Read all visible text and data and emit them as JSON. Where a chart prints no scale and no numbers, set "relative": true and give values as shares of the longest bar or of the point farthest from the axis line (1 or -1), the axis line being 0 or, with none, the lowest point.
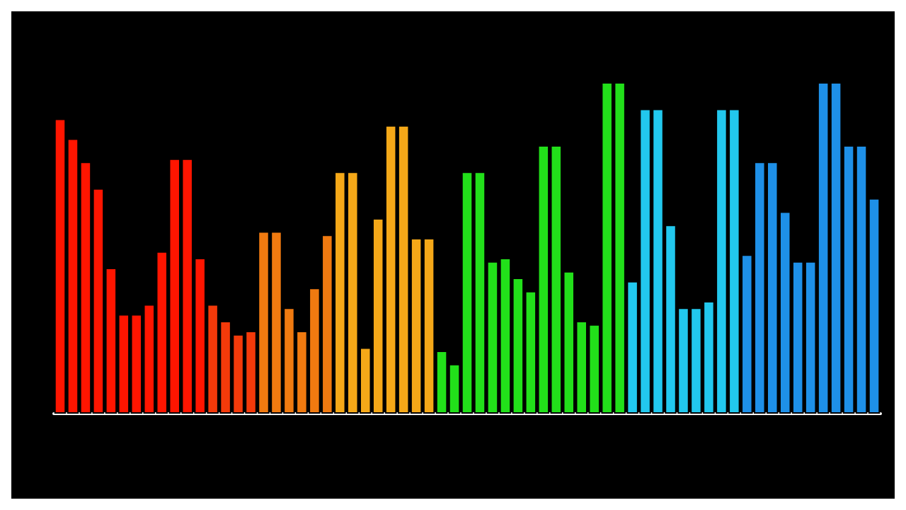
{
  "chart_data": {
    "type": "bar",
    "relative": true,
    "categories": [
      null,
      null,
      null,
      null,
      null,
      null,
      null,
      null,
      null,
      null,
      null,
      null,
      null,
      null,
      null,
      null,
      null,
      null,
      null,
      null,
      null,
      null,
      null,
      null,
      null,
      null,
      null,
      null,
      null,
      null,
      null,
      null,
      null,
      null,
      null,
      null,
      null,
      null,
      null,
      null,
      null,
      null,
      null,
      null,
      null,
      null,
      null,
      null,
      null,
      null,
      null,
      null,
      null,
      null,
      null,
      null,
      null,
      null,
      null,
      null,
      null,
      null,
      null,
      null,
      null
    ],
    "values": [
      0.89,
      0.83,
      0.76,
      0.68,
      0.44,
      0.3,
      0.3,
      0.33,
      0.49,
      0.77,
      0.77,
      0.47,
      0.33,
      0.28,
      0.24,
      0.25,
      0.55,
      0.55,
      0.32,
      0.25,
      0.38,
      0.54,
      0.73,
      0.73,
      0.2,
      0.59,
      0.87,
      0.87,
      0.53,
      0.53,
      0.19,
      0.15,
      0.73,
      0.73,
      0.46,
      0.47,
      0.41,
      0.37,
      0.81,
      0.81,
      0.43,
      0.28,
      0.27,
      1,
      1,
      0.4,
      0.92,
      0.92,
      0.57,
      0.32,
      0.32,
      0.34,
      0.92,
      0.92,
      0.48,
      0.76,
      0.76,
      0.61,
      0.46,
      0.46,
      1,
      1,
      0.81,
      0.81,
      0.65
    ],
    "colors": [
      "#ff1500",
      "#ff1500",
      "#ff1500",
      "#ff1500",
      "#ff1500",
      "#ff1500",
      "#ff1500",
      "#ff1500",
      "#ff1500",
      "#ff1500",
      "#ff1500",
      "#ff1500",
      "#f43a0a",
      "#f43a0a",
      "#f43a0a",
      "#f43a0a",
      "#f07a10",
      "#f07a10",
      "#f07a10",
      "#f07a10",
      "#f07a10",
      "#f07a10",
      "#f5a818",
      "#f5a818",
      "#f5a818",
      "#f5a818",
      "#f5a818",
      "#f5a818",
      "#f5a818",
      "#f5a818",
      "#22e01a",
      "#22e01a",
      "#22e01a",
      "#22e01a",
      "#22e01a",
      "#22e01a",
      "#22e01a",
      "#22e01a",
      "#22e01a",
      "#22e01a",
      "#22e01a",
      "#22e01a",
      "#22e01a",
      "#22e01a",
      "#22e01a",
      "#22c8ee",
      "#22c8ee",
      "#22c8ee",
      "#22c8ee",
      "#22c8ee",
      "#22c8ee",
      "#22c8ee",
      "#22c8ee",
      "#22c8ee",
      "#1e90e8",
      "#1e90e8",
      "#1e90e8",
      "#1e90e8",
      "#1e90e8",
      "#1e90e8",
      "#1e90e8",
      "#1e90e8",
      "#1e90e8",
      "#1e90e8",
      "#1e90e8"
    ]
  }
}
